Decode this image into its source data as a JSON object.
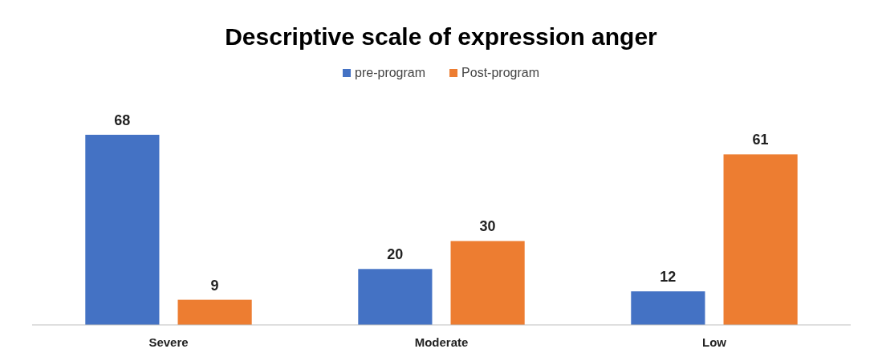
{
  "chart_data": {
    "type": "bar",
    "title": "Descriptive scale of expression anger",
    "categories": [
      "Severe",
      "Moderate",
      "Low"
    ],
    "series": [
      {
        "name": "pre-program",
        "color": "#4472c4",
        "values": [
          68,
          20,
          12
        ]
      },
      {
        "name": "Post-program",
        "color": "#ed7d31",
        "values": [
          9,
          30,
          61
        ]
      }
    ],
    "data_labels": true,
    "legend": "top"
  }
}
